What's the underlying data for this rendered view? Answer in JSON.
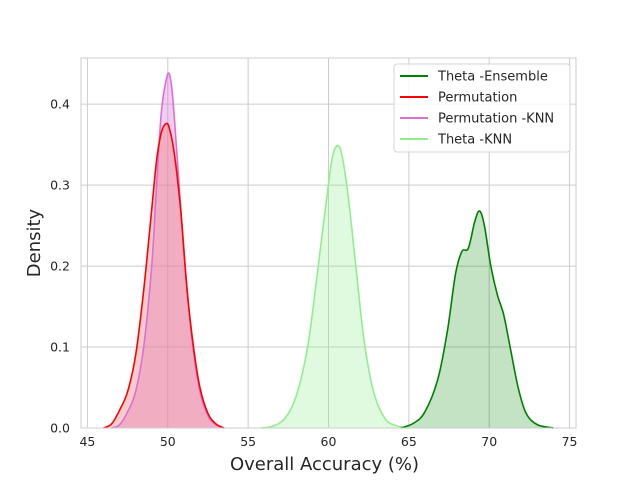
{
  "chart_data": {
    "type": "area",
    "title": "",
    "xlabel": "Overall Accuracy (%)",
    "ylabel": "Density",
    "xlim": [
      44.6,
      75.4
    ],
    "ylim": [
      0,
      0.457
    ],
    "xticks": [
      45,
      50,
      55,
      60,
      65,
      70,
      75
    ],
    "yticks": [
      0.0,
      0.1,
      0.2,
      0.3,
      0.4
    ],
    "ytick_labels": [
      "0.0",
      "0.1",
      "0.2",
      "0.3",
      "0.4"
    ],
    "grid": true,
    "legend_position": "top-right",
    "legend_order": [
      "Theta -Ensemble",
      "Permutation",
      "Permutation -KNN",
      "Theta -KNN"
    ],
    "series": [
      {
        "name": "Permutation -KNN",
        "color": "#DA70D6",
        "fill": "#DA70D6",
        "fill_opacity": 0.35,
        "x": [
          46.5,
          47,
          47.5,
          48,
          48.5,
          49,
          49.3,
          49.6,
          49.9,
          50.1,
          50.3,
          50.6,
          51,
          51.5,
          52,
          52.5,
          53,
          53.5
        ],
        "y": [
          0.0,
          0.004,
          0.02,
          0.045,
          0.1,
          0.2,
          0.3,
          0.39,
          0.43,
          0.437,
          0.41,
          0.33,
          0.22,
          0.11,
          0.045,
          0.015,
          0.004,
          0.0
        ]
      },
      {
        "name": "Permutation",
        "color": "#FF0000",
        "fill": "#F08080",
        "fill_opacity": 0.4,
        "x": [
          46.0,
          46.5,
          47,
          47.5,
          48,
          48.5,
          49,
          49.3,
          49.6,
          49.9,
          50.1,
          50.4,
          50.8,
          51.2,
          51.6,
          52,
          52.5,
          53,
          53.5
        ],
        "y": [
          0.0,
          0.005,
          0.022,
          0.045,
          0.09,
          0.17,
          0.27,
          0.33,
          0.365,
          0.376,
          0.37,
          0.34,
          0.27,
          0.17,
          0.1,
          0.05,
          0.018,
          0.005,
          0.0
        ]
      },
      {
        "name": "Theta -KNN",
        "color": "#90EE90",
        "fill": "#90EE90",
        "fill_opacity": 0.28,
        "x": [
          55.8,
          56.5,
          57.3,
          58,
          58.7,
          59.3,
          59.8,
          60.2,
          60.5,
          60.8,
          61.2,
          61.7,
          62.2,
          62.8,
          63.5,
          64.2,
          65
        ],
        "y": [
          0.0,
          0.002,
          0.012,
          0.04,
          0.1,
          0.19,
          0.27,
          0.33,
          0.348,
          0.34,
          0.29,
          0.2,
          0.11,
          0.045,
          0.012,
          0.003,
          0.0
        ]
      },
      {
        "name": "Theta -Ensemble",
        "color": "#008000",
        "fill": "#008000",
        "fill_opacity": 0.23,
        "x": [
          64.5,
          65.3,
          66,
          66.8,
          67.4,
          67.9,
          68.3,
          68.7,
          69.1,
          69.4,
          69.7,
          70.1,
          70.5,
          70.9,
          71.3,
          71.8,
          72.3,
          73,
          74
        ],
        "y": [
          0.0,
          0.006,
          0.02,
          0.06,
          0.12,
          0.19,
          0.218,
          0.222,
          0.255,
          0.268,
          0.25,
          0.2,
          0.165,
          0.14,
          0.1,
          0.05,
          0.018,
          0.004,
          0.0
        ]
      }
    ]
  }
}
